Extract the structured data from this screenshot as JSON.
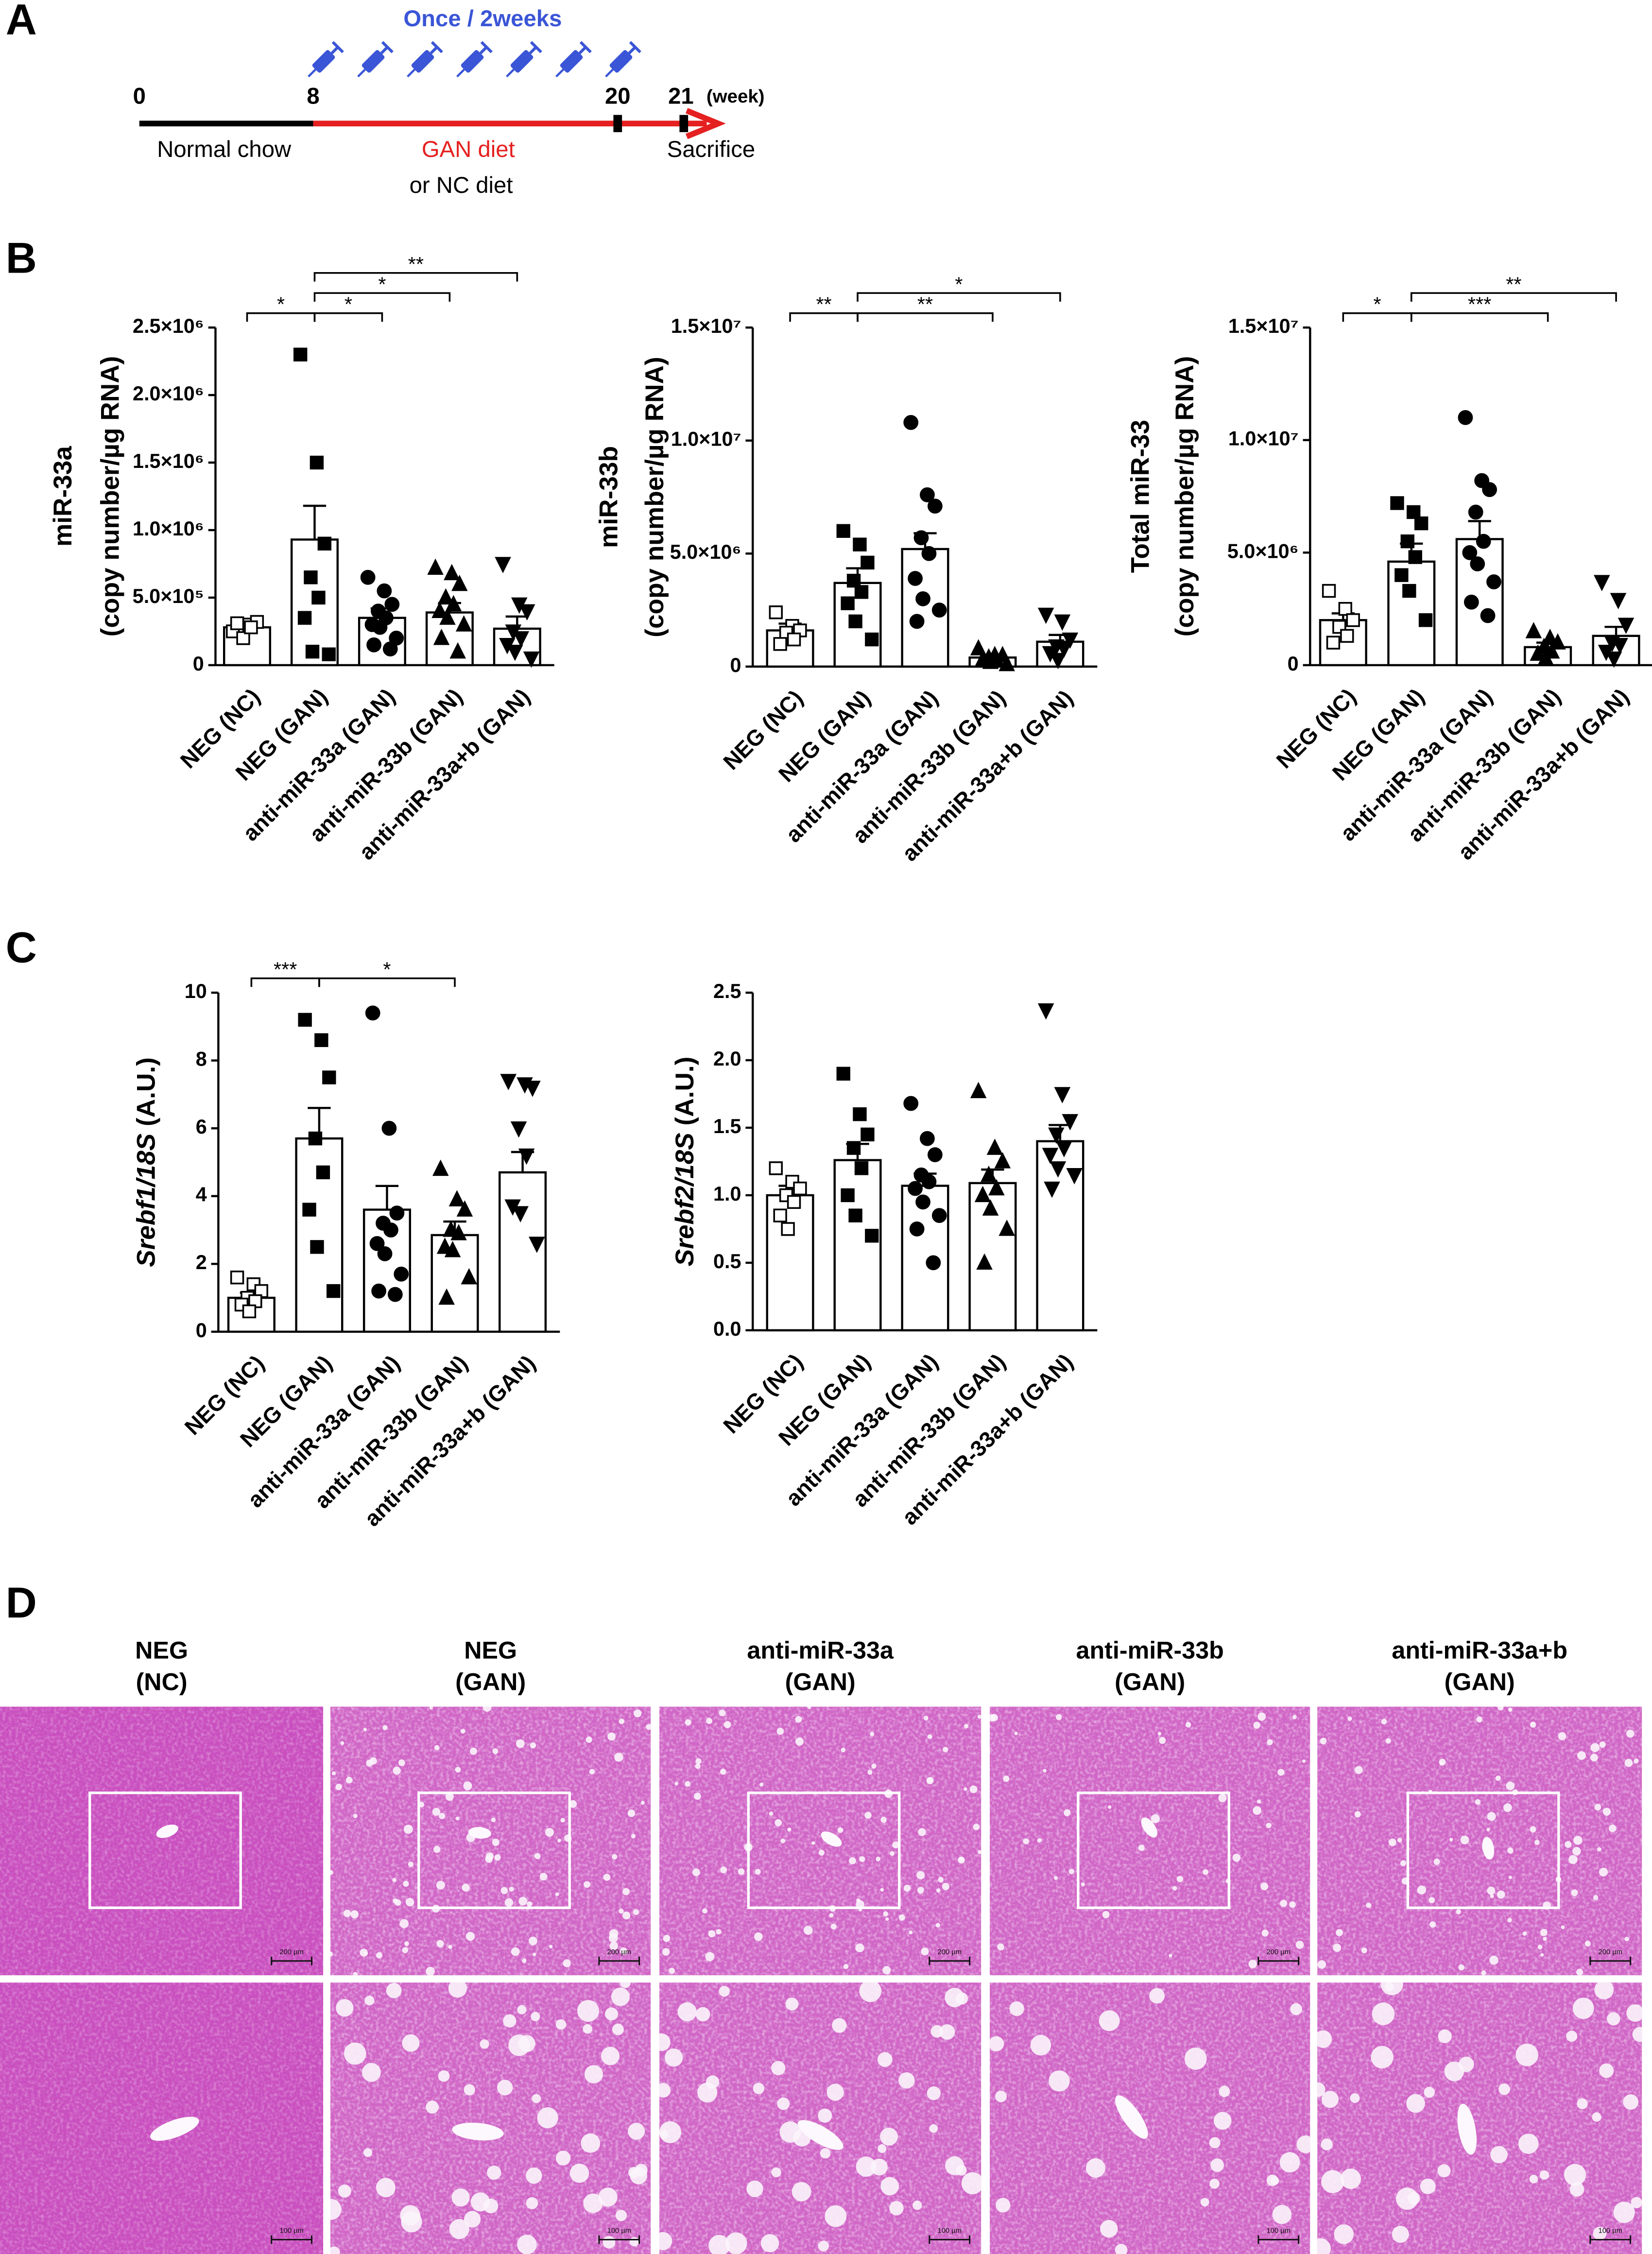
{
  "panels": [
    "A",
    "B",
    "C",
    "D"
  ],
  "timeline": {
    "frequency": "Once / 2weeks",
    "ticks": [
      "0",
      "8",
      "20",
      "21"
    ],
    "unit": "(week)",
    "phase1": "Normal chow",
    "phase2": "GAN diet",
    "phase2_alt": "or NC diet",
    "end": "Sacrifice"
  },
  "chart_data": [
    {
      "type": "bar",
      "ylabel": [
        "miR-33a",
        "(copy number/µg RNA)"
      ],
      "categories": [
        "NEG (NC)",
        "NEG (GAN)",
        "anti-miR-33a (GAN)",
        "anti-miR-33b (GAN)",
        "anti-miR-33a+b (GAN)"
      ],
      "values": [
        280000,
        930000,
        350000,
        390000,
        270000
      ],
      "errors": [
        30000,
        250000,
        70000,
        70000,
        90000
      ],
      "points": [
        [
          250000,
          300000,
          320000,
          200000,
          280000,
          310000
        ],
        [
          2300000,
          1500000,
          900000,
          650000,
          500000,
          350000,
          100000,
          80000
        ],
        [
          650000,
          550000,
          450000,
          400000,
          350000,
          300000,
          280000,
          200000,
          150000,
          120000
        ],
        [
          720000,
          680000,
          600000,
          500000,
          450000,
          400000,
          350000,
          300000,
          200000,
          100000
        ],
        [
          750000,
          450000,
          400000,
          250000,
          200000,
          150000,
          100000,
          50000
        ]
      ],
      "ylim": [
        0,
        2500000
      ],
      "yticks": [
        0,
        {
          "value": 500000,
          "label": "5.0×10⁵"
        },
        {
          "value": 1000000,
          "label": "1.0×10⁶"
        },
        {
          "value": 1500000,
          "label": "1.5×10⁶"
        },
        {
          "value": 2000000,
          "label": "2.0×10⁶"
        },
        {
          "value": 2500000,
          "label": "2.5×10⁶"
        }
      ],
      "comparisons": [
        {
          "from": "NEG (NC)",
          "to": "NEG (GAN)",
          "label": "*"
        },
        {
          "from": "NEG (GAN)",
          "to": "anti-miR-33a (GAN)",
          "label": "*"
        },
        {
          "from": "NEG (GAN)",
          "to": "anti-miR-33b (GAN)",
          "label": "*"
        },
        {
          "from": "NEG (GAN)",
          "to": "anti-miR-33a+b (GAN)",
          "label": "**"
        }
      ],
      "markers": [
        "open-square",
        "square",
        "circle",
        "triangle",
        "triangle-down"
      ],
      "bar_color": "#ffffff",
      "edge_color": "#000000"
    },
    {
      "type": "bar",
      "ylabel": [
        "miR-33b",
        "(copy number/µg RNA)"
      ],
      "categories": [
        "NEG (NC)",
        "NEG (GAN)",
        "anti-miR-33a (GAN)",
        "anti-miR-33b (GAN)",
        "anti-miR-33a+b (GAN)"
      ],
      "values": [
        1600000,
        3700000,
        5200000,
        400000,
        1100000
      ],
      "errors": [
        300000,
        650000,
        700000,
        100000,
        300000
      ],
      "points": [
        [
          2400000,
          1800000,
          1600000,
          1500000,
          1200000,
          1000000
        ],
        [
          6000000,
          5400000,
          4600000,
          3800000,
          3300000,
          2800000,
          2000000,
          1200000
        ],
        [
          10800000,
          7600000,
          7100000,
          5700000,
          5000000,
          3900000,
          3000000,
          2500000,
          2000000
        ],
        [
          800000,
          500000,
          500000,
          400000,
          300000,
          300000,
          200000,
          100000
        ],
        [
          2300000,
          2000000,
          1200000,
          900000,
          800000,
          600000,
          300000
        ]
      ],
      "ylim": [
        0,
        15000000
      ],
      "yticks": [
        0,
        {
          "value": 5000000,
          "label": "5.0×10⁶"
        },
        {
          "value": 10000000,
          "label": "1.0×10⁷"
        },
        {
          "value": 15000000,
          "label": "1.5×10⁷"
        }
      ],
      "comparisons": [
        {
          "from": "NEG (NC)",
          "to": "NEG (GAN)",
          "label": "**"
        },
        {
          "from": "NEG (GAN)",
          "to": "anti-miR-33b (GAN)",
          "label": "**"
        },
        {
          "from": "NEG (GAN)",
          "to": "anti-miR-33a+b (GAN)",
          "label": "*"
        }
      ],
      "markers": [
        "open-square",
        "square",
        "circle",
        "triangle",
        "triangle-down"
      ],
      "bar_color": "#ffffff",
      "edge_color": "#000000"
    },
    {
      "type": "bar",
      "ylabel": [
        "Total miR-33",
        "(copy number/µg RNA)"
      ],
      "categories": [
        "NEG (NC)",
        "NEG (GAN)",
        "anti-miR-33a (GAN)",
        "anti-miR-33b (GAN)",
        "anti-miR-33a+b (GAN)"
      ],
      "values": [
        2000000,
        4600000,
        5600000,
        800000,
        1300000
      ],
      "errors": [
        300000,
        800000,
        800000,
        200000,
        400000
      ],
      "points": [
        [
          3300000,
          2500000,
          2000000,
          1700000,
          1300000,
          1000000
        ],
        [
          7200000,
          6800000,
          6300000,
          5500000,
          4800000,
          4000000,
          3300000,
          2000000
        ],
        [
          11000000,
          8200000,
          7800000,
          6800000,
          5500000,
          5000000,
          4500000,
          3700000,
          2800000,
          2200000
        ],
        [
          1500000,
          1200000,
          1000000,
          800000,
          600000,
          500000,
          300000
        ],
        [
          3700000,
          2900000,
          1800000,
          1000000,
          900000,
          600000,
          300000
        ]
      ],
      "ylim": [
        0,
        15000000
      ],
      "yticks": [
        0,
        {
          "value": 5000000,
          "label": "5.0×10⁶"
        },
        {
          "value": 10000000,
          "label": "1.0×10⁷"
        },
        {
          "value": 15000000,
          "label": "1.5×10⁷"
        }
      ],
      "comparisons": [
        {
          "from": "NEG (NC)",
          "to": "NEG (GAN)",
          "label": "*"
        },
        {
          "from": "NEG (GAN)",
          "to": "anti-miR-33b (GAN)",
          "label": "***"
        },
        {
          "from": "NEG (GAN)",
          "to": "anti-miR-33a+b (GAN)",
          "label": "**"
        }
      ],
      "markers": [
        "open-square",
        "square",
        "circle",
        "triangle",
        "triangle-down"
      ],
      "bar_color": "#ffffff",
      "edge_color": "#000000"
    },
    {
      "type": "bar",
      "ylabel": [
        "Srebf1/18S",
        " (A.U.)"
      ],
      "categories": [
        "NEG (NC)",
        "NEG (GAN)",
        "anti-miR-33a (GAN)",
        "anti-miR-33b (GAN)",
        "anti-miR-33a+b (GAN)"
      ],
      "values": [
        1.0,
        5.7,
        3.6,
        2.85,
        4.7
      ],
      "errors": [
        0.15,
        0.9,
        0.7,
        0.4,
        0.6
      ],
      "points": [
        [
          1.6,
          1.4,
          1.2,
          1.0,
          0.9,
          0.8,
          0.6
        ],
        [
          9.2,
          8.6,
          7.5,
          5.7,
          4.7,
          3.6,
          2.5,
          1.2
        ],
        [
          9.4,
          6.0,
          3.5,
          3.2,
          3.0,
          2.6,
          2.3,
          1.7,
          1.2,
          1.1
        ],
        [
          4.8,
          3.9,
          3.6,
          3.0,
          2.9,
          2.5,
          2.4,
          1.6,
          1.0
        ],
        [
          7.4,
          7.3,
          7.2,
          6.0,
          5.2,
          3.7,
          3.5,
          2.6
        ]
      ],
      "ylim": [
        0,
        10
      ],
      "yticks": [
        0,
        2,
        4,
        6,
        8,
        10
      ],
      "comparisons": [
        {
          "from": "NEG (NC)",
          "to": "NEG (GAN)",
          "label": "***"
        },
        {
          "from": "NEG (GAN)",
          "to": "anti-miR-33b (GAN)",
          "label": "*"
        }
      ],
      "markers": [
        "open-square",
        "square",
        "circle",
        "triangle",
        "triangle-down"
      ],
      "bar_color": "#ffffff",
      "edge_color": "#000000"
    },
    {
      "type": "bar",
      "ylabel": [
        "Srebf2/18S",
        " (A.U.)"
      ],
      "categories": [
        "NEG (NC)",
        "NEG (GAN)",
        "anti-miR-33a (GAN)",
        "anti-miR-33b (GAN)",
        "anti-miR-33a+b (GAN)"
      ],
      "values": [
        1.0,
        1.26,
        1.07,
        1.09,
        1.4
      ],
      "errors": [
        0.07,
        0.12,
        0.09,
        0.1,
        0.12
      ],
      "points": [
        [
          1.2,
          1.1,
          1.05,
          1.0,
          0.95,
          0.85,
          0.75
        ],
        [
          1.9,
          1.6,
          1.45,
          1.35,
          1.2,
          1.0,
          0.85,
          0.7
        ],
        [
          1.68,
          1.42,
          1.3,
          1.15,
          1.1,
          1.05,
          0.95,
          0.85,
          0.75,
          0.5
        ],
        [
          1.77,
          1.35,
          1.25,
          1.15,
          1.05,
          1.0,
          0.9,
          0.75,
          0.5
        ],
        [
          2.37,
          1.75,
          1.55,
          1.45,
          1.35,
          1.3,
          1.2,
          1.15,
          1.05
        ]
      ],
      "ylim": [
        0,
        2.5
      ],
      "yticks": [
        {
          "value": 0,
          "label": "0.0"
        },
        {
          "value": 0.5,
          "label": "0.5"
        },
        {
          "value": 1,
          "label": "1.0"
        },
        {
          "value": 1.5,
          "label": "1.5"
        },
        {
          "value": 2,
          "label": "2.0"
        },
        {
          "value": 2.5,
          "label": "2.5"
        }
      ],
      "comparisons": [],
      "markers": [
        "open-square",
        "square",
        "circle",
        "triangle",
        "triangle-down"
      ],
      "bar_color": "#ffffff",
      "edge_color": "#000000"
    }
  ],
  "histology": {
    "columns": [
      [
        "NEG",
        "(NC)"
      ],
      [
        "NEG",
        "(GAN)"
      ],
      [
        "anti-miR-33a",
        "(GAN)"
      ],
      [
        "anti-miR-33b",
        "(GAN)"
      ],
      [
        "anti-miR-33a+b",
        "(GAN)"
      ]
    ],
    "scale_bars": [
      "200 µm",
      "100 µm"
    ]
  }
}
